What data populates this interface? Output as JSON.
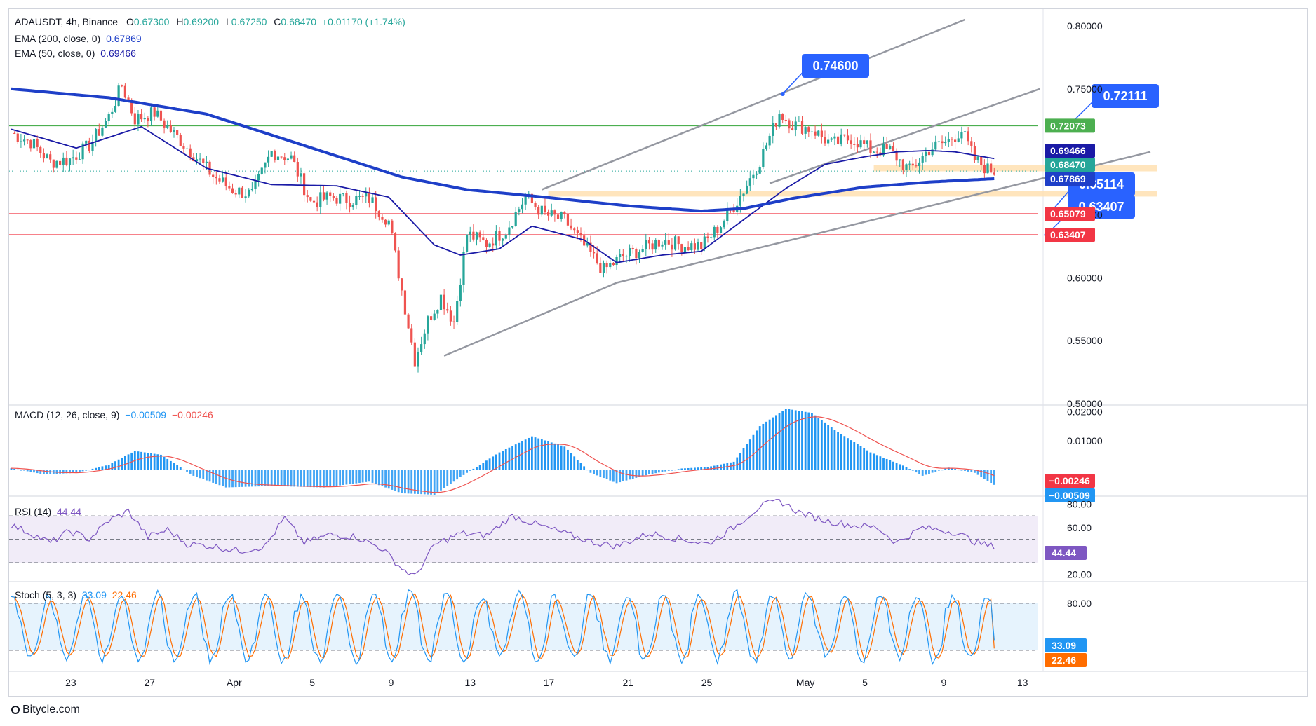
{
  "header": {
    "symbol": "ADAUSDT, 4h, Binance",
    "open_label": "O",
    "open": "0.67300",
    "high_label": "H",
    "high": "0.69200",
    "low_label": "L",
    "low": "0.67250",
    "close_label": "C",
    "close": "0.68470",
    "change": "+0.01170 (+1.74%)",
    "ema200_label": "EMA (200, close, 0)",
    "ema200_value": "0.67869",
    "ema50_label": "EMA (50, close, 0)",
    "ema50_value": "0.69466"
  },
  "indicators": {
    "macd_label": "MACD (12, 26, close, 9)",
    "macd_value": "−0.00509",
    "macd_signal": "−0.00246",
    "rsi_label": "RSI (14)",
    "rsi_value": "44.44",
    "stoch_label": "Stoch (5, 3, 3)",
    "stoch_k": "33.09",
    "stoch_d": "22.46"
  },
  "watermark": "Bitycle.com",
  "colors": {
    "up": "#26a69a",
    "down": "#ef5350",
    "ema200": "#1e3fc8",
    "ema50": "#1a1aa6",
    "macd_line": "#2196f3",
    "signal_line": "#ef5350",
    "rsi_line": "#7e57c2",
    "stoch_k": "#2196f3",
    "stoch_d": "#ff6d00",
    "callout": "#2962ff",
    "resistance": "#4caf50",
    "support": "#f23645",
    "zone": "#ffe0b2"
  },
  "chart_data": {
    "type": "candlestick",
    "symbol": "ADAUSDT",
    "timeframe": "4h",
    "exchange": "Binance",
    "x_ticks": [
      "23",
      "27",
      "Apr",
      "5",
      "9",
      "13",
      "17",
      "21",
      "25",
      "May",
      "5",
      "9",
      "13"
    ],
    "price_axis_ticks": [
      "0.80000",
      "0.75000",
      "0.65000",
      "0.60000",
      "0.55000",
      "0.50000"
    ],
    "ylim": [
      0.5,
      0.8
    ],
    "anchor_path": [
      [
        0,
        0.715
      ],
      [
        6,
        0.708
      ],
      [
        12,
        0.692
      ],
      [
        18,
        0.694
      ],
      [
        24,
        0.705
      ],
      [
        30,
        0.728
      ],
      [
        34,
        0.753
      ],
      [
        38,
        0.726
      ],
      [
        44,
        0.731
      ],
      [
        50,
        0.714
      ],
      [
        56,
        0.698
      ],
      [
        62,
        0.681
      ],
      [
        68,
        0.67
      ],
      [
        74,
        0.666
      ],
      [
        80,
        0.7
      ],
      [
        86,
        0.695
      ],
      [
        92,
        0.66
      ],
      [
        98,
        0.664
      ],
      [
        104,
        0.662
      ],
      [
        110,
        0.663
      ],
      [
        116,
        0.645
      ],
      [
        120,
        0.59
      ],
      [
        124,
        0.535
      ],
      [
        128,
        0.566
      ],
      [
        132,
        0.585
      ],
      [
        136,
        0.565
      ],
      [
        140,
        0.635
      ],
      [
        146,
        0.627
      ],
      [
        152,
        0.638
      ],
      [
        158,
        0.664
      ],
      [
        164,
        0.65
      ],
      [
        170,
        0.646
      ],
      [
        176,
        0.625
      ],
      [
        182,
        0.606
      ],
      [
        188,
        0.617
      ],
      [
        194,
        0.623
      ],
      [
        200,
        0.63
      ],
      [
        206,
        0.626
      ],
      [
        212,
        0.625
      ],
      [
        218,
        0.642
      ],
      [
        224,
        0.665
      ],
      [
        230,
        0.693
      ],
      [
        236,
        0.731
      ],
      [
        240,
        0.722
      ],
      [
        246,
        0.718
      ],
      [
        252,
        0.706
      ],
      [
        258,
        0.711
      ],
      [
        264,
        0.702
      ],
      [
        270,
        0.701
      ],
      [
        276,
        0.685
      ],
      [
        282,
        0.702
      ],
      [
        288,
        0.709
      ],
      [
        292,
        0.717
      ],
      [
        296,
        0.694
      ],
      [
        300,
        0.686
      ],
      [
        302,
        0.6847
      ]
    ],
    "ema50_path": [
      [
        0,
        0.718
      ],
      [
        20,
        0.703
      ],
      [
        40,
        0.72
      ],
      [
        60,
        0.687
      ],
      [
        80,
        0.674
      ],
      [
        100,
        0.673
      ],
      [
        116,
        0.664
      ],
      [
        130,
        0.626
      ],
      [
        138,
        0.618
      ],
      [
        150,
        0.623
      ],
      [
        160,
        0.641
      ],
      [
        176,
        0.63
      ],
      [
        186,
        0.612
      ],
      [
        200,
        0.618
      ],
      [
        212,
        0.621
      ],
      [
        226,
        0.648
      ],
      [
        238,
        0.671
      ],
      [
        250,
        0.69
      ],
      [
        262,
        0.696
      ],
      [
        272,
        0.7
      ],
      [
        282,
        0.701
      ],
      [
        290,
        0.7
      ],
      [
        302,
        0.69466
      ]
    ],
    "ema200_path": [
      [
        0,
        0.75
      ],
      [
        30,
        0.743
      ],
      [
        60,
        0.73
      ],
      [
        90,
        0.705
      ],
      [
        120,
        0.68
      ],
      [
        140,
        0.67
      ],
      [
        160,
        0.665
      ],
      [
        190,
        0.657
      ],
      [
        212,
        0.653
      ],
      [
        225,
        0.655
      ],
      [
        240,
        0.663
      ],
      [
        262,
        0.672
      ],
      [
        282,
        0.676
      ],
      [
        302,
        0.67869
      ]
    ],
    "trendlines": [
      {
        "from": [
          133,
          0.538
        ],
        "to": [
          186,
          0.596
        ]
      },
      {
        "from": [
          186,
          0.596
        ],
        "to": [
          350,
          0.7
        ]
      },
      {
        "from": [
          163,
          0.67
        ],
        "to": [
          293,
          0.805
        ]
      },
      {
        "from": [
          233,
          0.675
        ],
        "to": [
          316,
          0.75
        ]
      }
    ],
    "horizontal_levels": [
      {
        "price": 0.72073,
        "label": "0.72073",
        "kind": "resistance"
      },
      {
        "price": 0.65079,
        "label": "0.65079",
        "kind": "support"
      },
      {
        "price": 0.63407,
        "label": "0.63407",
        "kind": "support"
      }
    ],
    "zones": [
      {
        "from_bar": 165,
        "to_bar": 352,
        "low": 0.6645,
        "high": 0.669
      },
      {
        "from_bar": 265,
        "to_bar": 352,
        "low": 0.6845,
        "high": 0.6895
      }
    ],
    "callouts": [
      {
        "label": "0.74600",
        "bar": 237,
        "price": 0.746
      },
      {
        "label": "0.72111",
        "bar": 325,
        "price": 0.72111
      },
      {
        "label": "0.65114",
        "bar": 319,
        "price": 0.65114
      },
      {
        "label": "0.63407",
        "bar": 318,
        "price": 0.63407
      }
    ],
    "price_tags": [
      {
        "label": "0.72073",
        "color": "#4caf50"
      },
      {
        "label": "0.69466",
        "color": "#1a1aa6"
      },
      {
        "label": "0.68470",
        "color": "#26a69a"
      },
      {
        "label": "0.67869",
        "color": "#1e3fc8"
      },
      {
        "label": "0.65079",
        "color": "#f23645"
      },
      {
        "label": "0.63407",
        "color": "#f23645"
      }
    ],
    "macd": {
      "axis_ticks": [
        "0.02000",
        "0.01000"
      ],
      "ylim": [
        -0.0085,
        0.0215
      ],
      "line": "-0.00509",
      "signal": "-0.00246",
      "path": [
        [
          0,
          0.0006
        ],
        [
          10,
          -0.0015
        ],
        [
          20,
          -0.001
        ],
        [
          30,
          0.0018
        ],
        [
          38,
          0.0065
        ],
        [
          46,
          0.0052
        ],
        [
          56,
          -0.002
        ],
        [
          66,
          -0.006
        ],
        [
          80,
          -0.0055
        ],
        [
          96,
          -0.006
        ],
        [
          110,
          -0.004
        ],
        [
          120,
          -0.008
        ],
        [
          130,
          -0.0085
        ],
        [
          140,
          -0.001
        ],
        [
          150,
          0.006
        ],
        [
          160,
          0.0115
        ],
        [
          170,
          0.008
        ],
        [
          178,
          -0.001
        ],
        [
          186,
          -0.0045
        ],
        [
          196,
          -0.0015
        ],
        [
          206,
          0.0005
        ],
        [
          214,
          0.001
        ],
        [
          222,
          0.0028
        ],
        [
          230,
          0.015
        ],
        [
          238,
          0.021
        ],
        [
          246,
          0.0195
        ],
        [
          254,
          0.013
        ],
        [
          264,
          0.006
        ],
        [
          274,
          0.0015
        ],
        [
          280,
          -0.002
        ],
        [
          288,
          0.0008
        ],
        [
          296,
          -0.001
        ],
        [
          302,
          -0.0051
        ]
      ]
    },
    "rsi": {
      "axis_ticks": [
        "80.00",
        "60.00",
        "20.00"
      ],
      "ylim": [
        15,
        85
      ],
      "bands": [
        30,
        50,
        70
      ],
      "value": "44.44",
      "path": [
        [
          0,
          62
        ],
        [
          6,
          55
        ],
        [
          12,
          47
        ],
        [
          18,
          57
        ],
        [
          24,
          50
        ],
        [
          30,
          66
        ],
        [
          36,
          74
        ],
        [
          42,
          52
        ],
        [
          48,
          58
        ],
        [
          54,
          46
        ],
        [
          62,
          44
        ],
        [
          70,
          40
        ],
        [
          78,
          44
        ],
        [
          84,
          68
        ],
        [
          90,
          47
        ],
        [
          98,
          54
        ],
        [
          106,
          52
        ],
        [
          114,
          42
        ],
        [
          120,
          25
        ],
        [
          124,
          18
        ],
        [
          130,
          45
        ],
        [
          138,
          55
        ],
        [
          146,
          53
        ],
        [
          154,
          70
        ],
        [
          162,
          62
        ],
        [
          170,
          55
        ],
        [
          178,
          48
        ],
        [
          186,
          44
        ],
        [
          196,
          55
        ],
        [
          206,
          50
        ],
        [
          214,
          46
        ],
        [
          222,
          60
        ],
        [
          230,
          78
        ],
        [
          236,
          83
        ],
        [
          242,
          73
        ],
        [
          250,
          66
        ],
        [
          258,
          62
        ],
        [
          266,
          60
        ],
        [
          272,
          47
        ],
        [
          280,
          60
        ],
        [
          290,
          56
        ],
        [
          296,
          48
        ],
        [
          300,
          44.44
        ],
        [
          302,
          44.44
        ]
      ]
    },
    "stoch": {
      "axis_ticks": [
        "80.00"
      ],
      "ylim": [
        -5,
        105
      ],
      "bands": [
        20,
        80
      ],
      "k": "33.09",
      "d": "22.46",
      "period": 10,
      "phase": 2,
      "bar_count": 302
    }
  }
}
